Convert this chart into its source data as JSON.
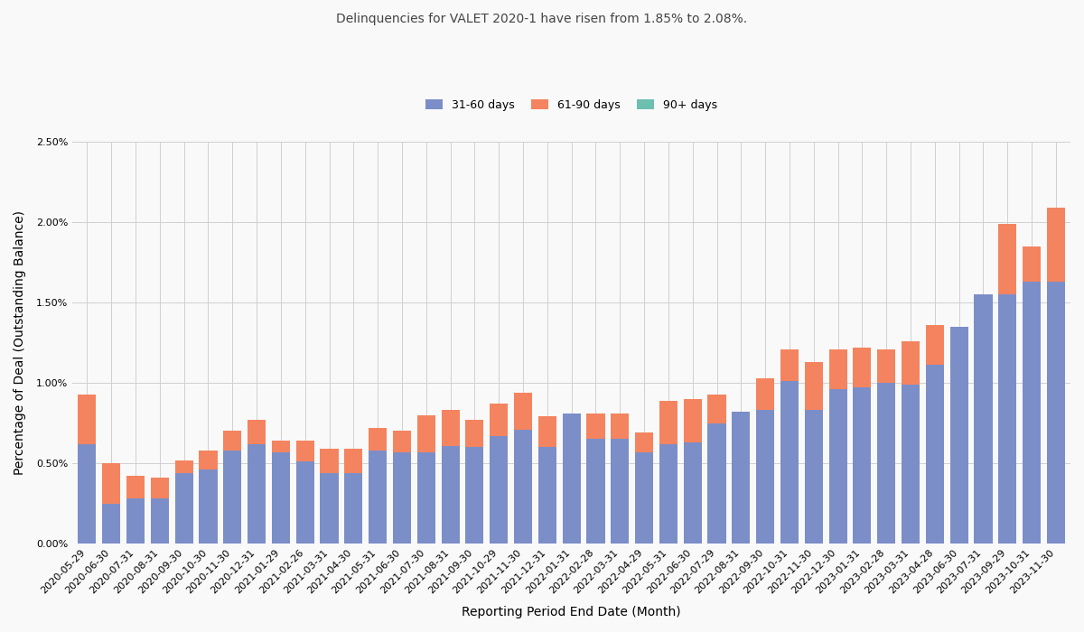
{
  "title": "Delinquencies for VALET 2020-1 have risen from 1.85% to 2.08%.",
  "xlabel": "Reporting Period End Date (Month)",
  "ylabel": "Percentage of Deal (Outstanding Balance)",
  "ylim": [
    0.0,
    0.025
  ],
  "categories": [
    "2020-05-29",
    "2020-06-30",
    "2020-07-31",
    "2020-08-31",
    "2020-09-30",
    "2020-10-30",
    "2020-11-30",
    "2020-12-31",
    "2021-01-29",
    "2021-02-26",
    "2021-03-31",
    "2021-04-30",
    "2021-05-31",
    "2021-06-30",
    "2021-07-30",
    "2021-08-31",
    "2021-09-30",
    "2021-10-29",
    "2021-11-30",
    "2021-12-31",
    "2022-01-31",
    "2022-02-28",
    "2022-03-31",
    "2022-04-29",
    "2022-05-31",
    "2022-06-30",
    "2022-07-29",
    "2022-08-31",
    "2022-09-30",
    "2022-10-31",
    "2022-11-30",
    "2022-12-30",
    "2023-01-31",
    "2023-02-28",
    "2023-03-31",
    "2023-04-28",
    "2023-06-30",
    "2023-07-31",
    "2023-09-29",
    "2023-10-31",
    "2023-11-30"
  ],
  "days_31_60": [
    0.0062,
    0.0025,
    0.0028,
    0.0028,
    0.0044,
    0.0046,
    0.0058,
    0.0062,
    0.0057,
    0.0051,
    0.0044,
    0.0044,
    0.0058,
    0.0057,
    0.0057,
    0.0061,
    0.006,
    0.0067,
    0.0071,
    0.006,
    0.0081,
    0.0065,
    0.0065,
    0.0057,
    0.0062,
    0.0063,
    0.0075,
    0.0082,
    0.0083,
    0.0101,
    0.0083,
    0.0096,
    0.0097,
    0.01,
    0.0099,
    0.0111,
    0.0135,
    0.0155,
    0.0155,
    0.0163,
    0.0163
  ],
  "days_61_90": [
    0.0031,
    0.0025,
    0.0014,
    0.0013,
    0.0008,
    0.0012,
    0.0012,
    0.0015,
    0.0007,
    0.0013,
    0.0015,
    0.0015,
    0.0014,
    0.0013,
    0.0023,
    0.0022,
    0.0017,
    0.002,
    0.0023,
    0.0019,
    0.0,
    0.0016,
    0.0016,
    0.0012,
    0.0027,
    0.0027,
    0.0018,
    0.0,
    0.002,
    0.002,
    0.003,
    0.0025,
    0.0025,
    0.0021,
    0.0027,
    0.0025,
    0.0,
    0.0,
    0.0044,
    0.0022,
    0.0046
  ],
  "days_90plus": [
    0.0,
    0.0,
    0.0,
    0.0,
    0.0,
    0.0,
    0.0,
    0.0,
    0.0,
    0.0,
    0.0,
    0.0,
    0.0,
    0.0,
    0.0,
    0.0,
    0.0,
    0.0,
    0.0,
    0.0,
    0.0,
    0.0,
    0.0,
    0.0,
    0.0,
    0.0,
    0.0,
    0.0,
    0.0,
    0.0,
    0.0,
    0.0,
    0.0,
    0.0,
    0.0,
    0.0,
    0.0,
    0.0,
    0.0,
    0.0,
    0.0
  ],
  "color_31_60": "#7b8ec8",
  "color_61_90": "#f4845f",
  "color_90plus": "#6dbfb0",
  "label_31_60": "31-60 days",
  "label_61_90": "61-90 days",
  "label_90plus": "90+ days",
  "background_color": "#f9f9f9",
  "grid_color": "#d0d0d0",
  "title_fontsize": 10,
  "axis_label_fontsize": 10,
  "tick_fontsize": 8
}
